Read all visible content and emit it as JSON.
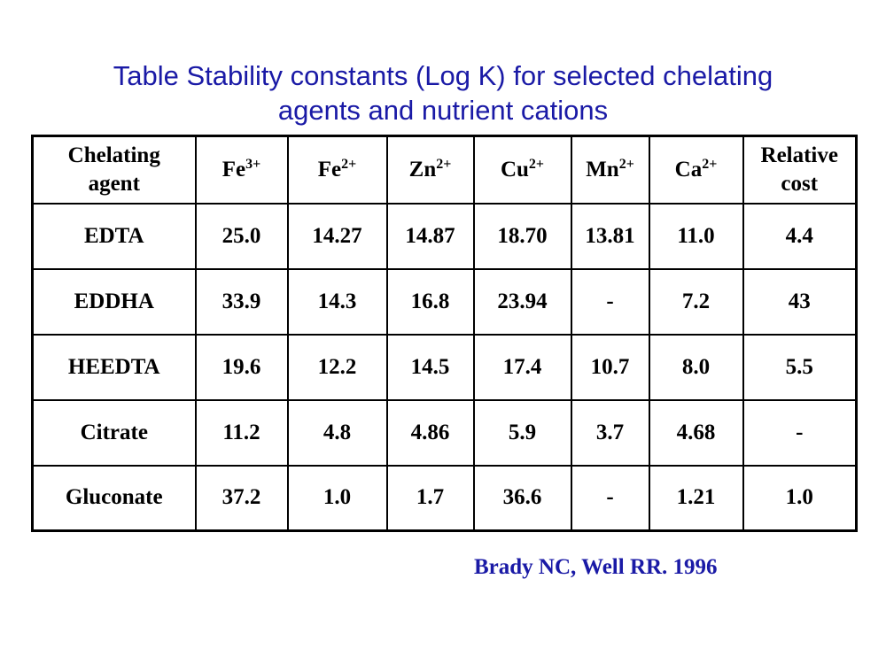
{
  "title": {
    "line1": "Table Stability constants (Log K) for selected chelating",
    "line2": "agents and nutrient cations"
  },
  "table": {
    "header": {
      "agent_line1": "Chelating",
      "agent_line2": "agent",
      "cations": [
        {
          "base": "Fe",
          "charge": "3+"
        },
        {
          "base": "Fe",
          "charge": "2+"
        },
        {
          "base": "Zn",
          "charge": "2+"
        },
        {
          "base": "Cu",
          "charge": "2+"
        },
        {
          "base": "Mn",
          "charge": "2+"
        },
        {
          "base": "Ca",
          "charge": "2+"
        }
      ],
      "cost_line1": "Relative",
      "cost_line2": "cost"
    },
    "rows": [
      {
        "agent": "EDTA",
        "values": [
          "25.0",
          "14.27",
          "14.87",
          "18.70",
          "13.81",
          "11.0",
          "4.4"
        ]
      },
      {
        "agent": "EDDHA",
        "values": [
          "33.9",
          "14.3",
          "16.8",
          "23.94",
          "-",
          "7.2",
          "43"
        ]
      },
      {
        "agent": "HEEDTA",
        "values": [
          "19.6",
          "12.2",
          "14.5",
          "17.4",
          "10.7",
          "8.0",
          "5.5"
        ]
      },
      {
        "agent": "Citrate",
        "values": [
          "11.2",
          "4.8",
          "4.86",
          "5.9",
          "3.7",
          "4.68",
          "-"
        ]
      },
      {
        "agent": "Gluconate",
        "values": [
          "37.2",
          "1.0",
          "1.7",
          "36.6",
          "-",
          "1.21",
          "1.0"
        ]
      }
    ]
  },
  "source": "Brady NC, Well RR. 1996",
  "colors": {
    "title": "#1a1aa6",
    "source": "#1a1aa6",
    "table_text": "#000000",
    "border": "#000000"
  }
}
